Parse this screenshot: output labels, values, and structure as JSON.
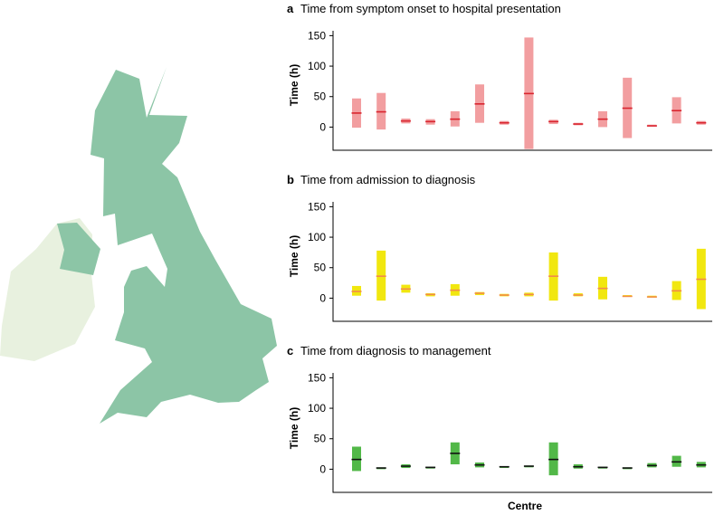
{
  "map": {
    "great_britain_color": "#8cc5a6",
    "ireland_color": "#e8f1df",
    "northern_ireland_color": "#8cc5a6"
  },
  "xlabel": "Centre",
  "chart_data": [
    {
      "type": "range-bar",
      "panel": "a",
      "title": "Time from symptom onset to hospital presentation",
      "ylabel": "Time (h)",
      "ylim": [
        -38,
        158
      ],
      "yticks": [
        0,
        50,
        100,
        150
      ],
      "bar_color": "#f29ea0",
      "median_color": "#d9252f",
      "centres": [
        {
          "centre": 1,
          "low": -1,
          "high": 47,
          "median": 23
        },
        {
          "centre": 2,
          "low": -4,
          "high": 56,
          "median": 25
        },
        {
          "centre": 3,
          "low": 6,
          "high": 14,
          "median": 10
        },
        {
          "centre": 4,
          "low": 4,
          "high": 13,
          "median": 9
        },
        {
          "centre": 5,
          "low": 1,
          "high": 26,
          "median": 13
        },
        {
          "centre": 6,
          "low": 7,
          "high": 70,
          "median": 38
        },
        {
          "centre": 7,
          "low": 4,
          "high": 10,
          "median": 7
        },
        {
          "centre": 8,
          "low": -36,
          "high": 147,
          "median": 55
        },
        {
          "centre": 9,
          "low": 5,
          "high": 12,
          "median": 9
        },
        {
          "centre": 10,
          "low": 3,
          "high": 7,
          "median": 5
        },
        {
          "centre": 11,
          "low": 0,
          "high": 26,
          "median": 13
        },
        {
          "centre": 12,
          "low": -18,
          "high": 81,
          "median": 31
        },
        {
          "centre": 13,
          "low": 1,
          "high": 4,
          "median": 2
        },
        {
          "centre": 14,
          "low": 6,
          "high": 49,
          "median": 27
        },
        {
          "centre": 15,
          "low": 4,
          "high": 10,
          "median": 7
        }
      ]
    },
    {
      "type": "range-bar",
      "panel": "b",
      "title": "Time from admission to diagnosis",
      "ylabel": "Time (h)",
      "ylim": [
        -38,
        158
      ],
      "yticks": [
        0,
        50,
        100,
        150
      ],
      "bar_color": "#f1e70f",
      "median_color": "#f28b4b",
      "centres": [
        {
          "centre": 1,
          "low": 4,
          "high": 20,
          "median": 11
        },
        {
          "centre": 2,
          "low": -4,
          "high": 78,
          "median": 36
        },
        {
          "centre": 3,
          "low": 9,
          "high": 22,
          "median": 15
        },
        {
          "centre": 4,
          "low": 3,
          "high": 8,
          "median": 6
        },
        {
          "centre": 5,
          "low": 4,
          "high": 23,
          "median": 13
        },
        {
          "centre": 6,
          "low": 5,
          "high": 10,
          "median": 8
        },
        {
          "centre": 7,
          "low": 3,
          "high": 7,
          "median": 5
        },
        {
          "centre": 8,
          "low": 3,
          "high": 9,
          "median": 6
        },
        {
          "centre": 9,
          "low": -4,
          "high": 75,
          "median": 36
        },
        {
          "centre": 10,
          "low": 3,
          "high": 8,
          "median": 5
        },
        {
          "centre": 11,
          "low": -2,
          "high": 35,
          "median": 16
        },
        {
          "centre": 12,
          "low": 2,
          "high": 5,
          "median": 3
        },
        {
          "centre": 13,
          "low": 1,
          "high": 4,
          "median": 2
        },
        {
          "centre": 14,
          "low": -3,
          "high": 28,
          "median": 12
        },
        {
          "centre": 15,
          "low": -18,
          "high": 81,
          "median": 31
        }
      ]
    },
    {
      "type": "range-bar",
      "panel": "c",
      "title": "Time from diagnosis to management",
      "ylabel": "Time (h)",
      "ylim": [
        -38,
        158
      ],
      "yticks": [
        0,
        50,
        100,
        150
      ],
      "bar_color": "#52b848",
      "median_color": "#111111",
      "centres": [
        {
          "centre": 1,
          "low": -3,
          "high": 37,
          "median": 16
        },
        {
          "centre": 2,
          "low": 2,
          "high": 3,
          "median": 2
        },
        {
          "centre": 3,
          "low": 2,
          "high": 8,
          "median": 5
        },
        {
          "centre": 4,
          "low": 2,
          "high": 4,
          "median": 3
        },
        {
          "centre": 5,
          "low": 8,
          "high": 44,
          "median": 26
        },
        {
          "centre": 6,
          "low": 3,
          "high": 11,
          "median": 7
        },
        {
          "centre": 7,
          "low": 3,
          "high": 5,
          "median": 4
        },
        {
          "centre": 8,
          "low": 4,
          "high": 6,
          "median": 5
        },
        {
          "centre": 9,
          "low": -10,
          "high": 44,
          "median": 16
        },
        {
          "centre": 10,
          "low": 1,
          "high": 8,
          "median": 4
        },
        {
          "centre": 11,
          "low": 2,
          "high": 4,
          "median": 3
        },
        {
          "centre": 12,
          "low": 1,
          "high": 3,
          "median": 2
        },
        {
          "centre": 13,
          "low": 3,
          "high": 10,
          "median": 6
        },
        {
          "centre": 14,
          "low": 4,
          "high": 22,
          "median": 12
        },
        {
          "centre": 15,
          "low": 3,
          "high": 12,
          "median": 7
        }
      ]
    }
  ]
}
